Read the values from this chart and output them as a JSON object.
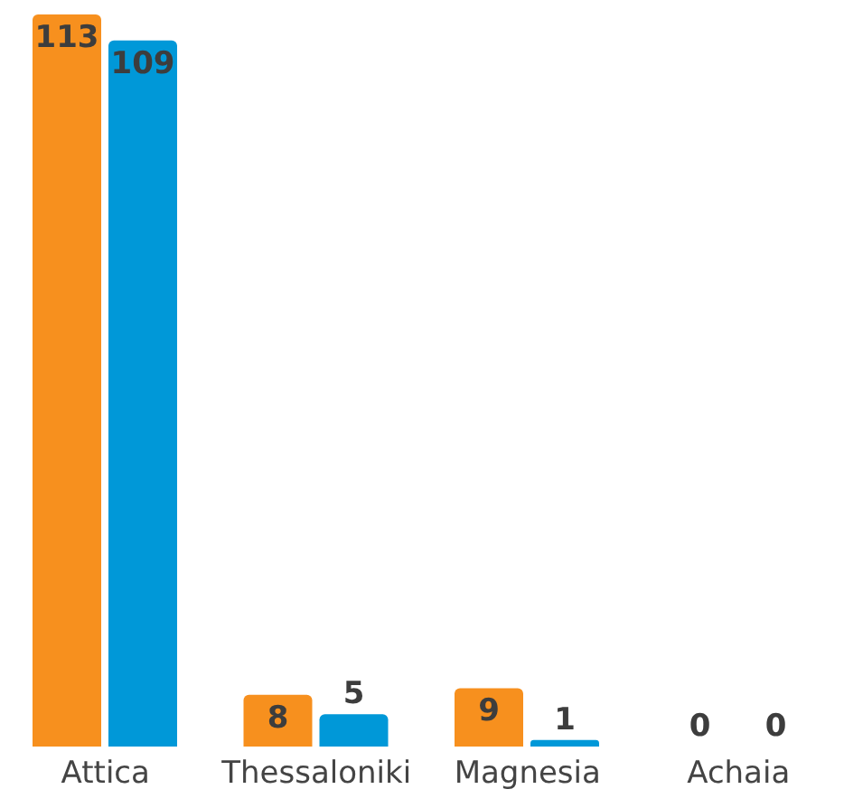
{
  "chart_data": {
    "type": "bar",
    "categories": [
      "Attica",
      "Thessaloniki",
      "Magnesia",
      "Achaia"
    ],
    "series": [
      {
        "color": "#f7901e",
        "values": [
          113,
          8,
          9,
          0
        ]
      },
      {
        "color": "#0098d8",
        "values": [
          109,
          5,
          1,
          0
        ]
      }
    ],
    "data_labels": true,
    "grid": false,
    "legend": false
  }
}
